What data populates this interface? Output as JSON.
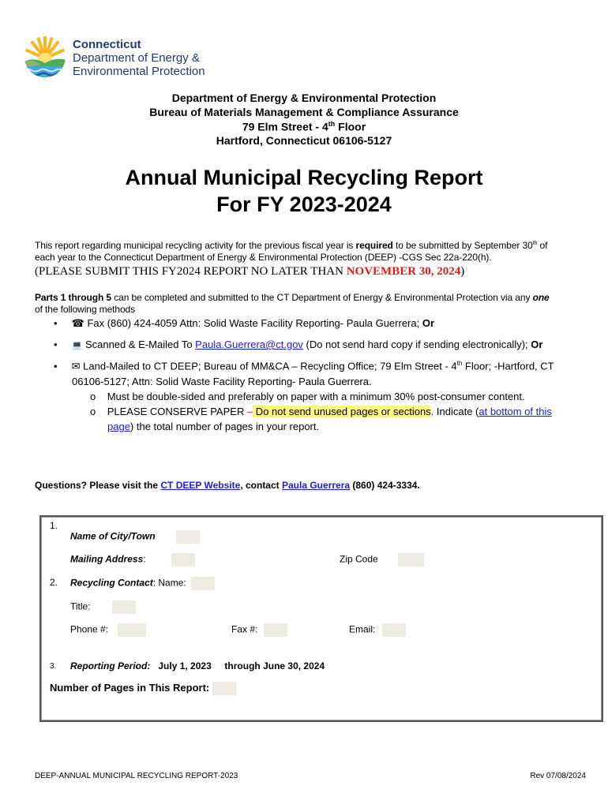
{
  "logo": {
    "line1": "Connecticut",
    "line2": "Department of Energy &",
    "line3": "Environmental Protection"
  },
  "header": [
    "Department of Energy & Environmental Protection",
    "Bureau of Materials Management & Compliance Assurance",
    "79 Elm Street - 4",
    "th",
    " Floor",
    "Hartford, Connecticut 06106-5127"
  ],
  "title": {
    "line1": "Annual Municipal Recycling Report",
    "line2": "For FY 2023-2024"
  },
  "intro": {
    "a": "This report regarding municipal recycling activity for the previous fiscal year is ",
    "b": "required",
    "c": " to be submitted by September 30",
    "sup": "th",
    "d": " of",
    "line2": "each year to the Connecticut Department of Energy & Environmental Protection (DEEP) -CGS Sec 22a-220(h).",
    "deadline_a": "(PLEASE SUBMIT THIS FY2024 REPORT NO LATER THAN ",
    "deadline_b": "NOVEMBER 30, 2024",
    "deadline_c": ")"
  },
  "parts": {
    "a": "Parts 1 through 5",
    "b": " can be completed and submitted to the CT Department of Energy & Environmental Protection via any ",
    "c": "one",
    "line2": "of the following methods"
  },
  "methods": {
    "fax": {
      "icon": "☎",
      "text": " Fax (860) 424-4059 Attn: Solid Waste Facility Reporting- Paula Guerrera; ",
      "or": "Or"
    },
    "email": {
      "icon": "💻",
      "a": " Scanned & E-Mailed To ",
      "link": "Paula.Guerrera@ct.gov",
      "b": "  (Do not send hard copy if sending electronically);  ",
      "or": "Or"
    },
    "mail": {
      "icon": "✉",
      "a": " Land-Mailed to CT DEEP; Bureau of MM&CA – Recycling Office; 79 Elm Street - 4",
      "sup": "th",
      "b": " Floor; -Hartford, CT",
      "line2": "06106-5127;  Attn: Solid Waste Facility Reporting- Paula Guerrera."
    },
    "sub1": "Must be double-sided and preferably on paper with a minimum 30% post-consumer content.",
    "sub2": {
      "a": "PLEASE CONSERVE PAPER ",
      "dash": "–",
      "hl": " Do not send unused pages or sections",
      "b": ". Indicate (",
      "link1": "at bottom of this",
      "link2": "page",
      "c": ") the total number of pages in your report."
    }
  },
  "questions": {
    "a": "Questions? Please visit the ",
    "link1": "CT DEEP Website",
    "b": ", contact ",
    "link2": "Paula Guerrera",
    "c": " (860) 424-3334."
  },
  "form": {
    "n1": "1.",
    "city": "Name of City/Town",
    "mailing": "Mailing Address",
    "colon": ":",
    "zip": "Zip Code",
    "n2": "2.",
    "contact": "Recycling Contact",
    "name": ": Name:",
    "title": "Title:",
    "phone": "Phone #:",
    "fax": "Fax #:",
    "email": "Email:",
    "n3": "3.",
    "period": "Reporting Period:",
    "start": "July 1, 2023",
    "through": "through  June 30, 2024",
    "pages": "Number of Pages in This Report:"
  },
  "footer": {
    "left": "DEEP-ANNUAL MUNICIPAL RECYCLING REPORT-2023",
    "right": "Rev 07/08/2024"
  }
}
